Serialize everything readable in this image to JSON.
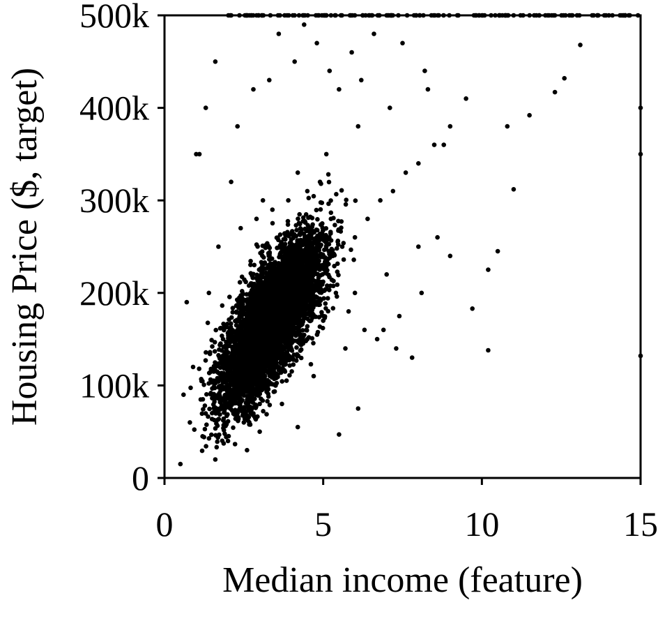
{
  "chart_data": {
    "type": "scatter",
    "title": "",
    "xlabel": "Median income (feature)",
    "ylabel": "Housing Price ($, target)",
    "xlim": [
      0,
      15
    ],
    "ylim": [
      0,
      500000
    ],
    "grid": false,
    "legend": "none",
    "x_ticks": [
      {
        "value": 0,
        "label": "0"
      },
      {
        "value": 5,
        "label": "5"
      },
      {
        "value": 10,
        "label": "10"
      },
      {
        "value": 15,
        "label": "15"
      }
    ],
    "y_ticks": [
      {
        "value": 0,
        "label": "0"
      },
      {
        "value": 100000,
        "label": "100k"
      },
      {
        "value": 200000,
        "label": "200k"
      },
      {
        "value": 300000,
        "label": "300k"
      },
      {
        "value": 400000,
        "label": "400k"
      },
      {
        "value": 500000,
        "label": "500k"
      }
    ],
    "colors": {
      "points": "#000000",
      "axes": "#000000",
      "background": "#ffffff"
    },
    "series": [
      {
        "x": [
          0.5,
          0.8,
          1.2,
          1.5,
          1.8,
          2.0,
          2.2,
          2.5,
          2.7,
          3.0,
          3.2,
          3.5,
          3.8,
          4.0,
          4.3,
          4.6,
          5.0,
          5.3,
          5.6,
          6.0,
          6.4,
          6.8,
          7.2,
          7.6,
          8.0,
          8.5,
          9.0,
          9.7,
          10.2,
          10.2,
          10.5,
          11.0,
          11.5,
          12.3,
          12.6,
          13.1,
          15.0,
          15.0,
          15.0,
          1.0,
          1.3,
          1.6,
          2.3,
          2.8,
          3.3,
          3.6,
          4.1,
          4.4,
          4.8,
          5.2,
          5.5,
          5.9,
          6.2,
          6.6,
          7.0,
          7.5,
          8.2,
          8.8,
          2.0,
          2.5,
          3.0,
          3.5,
          4.0,
          4.5,
          5.0,
          6.0,
          7.0,
          8.0,
          9.0,
          10.0,
          11.0,
          12.0,
          13.0,
          14.0,
          1.1,
          2.1,
          3.1,
          4.2,
          5.1,
          6.1,
          7.1,
          8.3,
          9.5,
          10.8,
          0.6,
          0.9,
          1.4,
          1.7,
          2.4,
          2.9,
          3.4,
          3.9,
          4.5,
          4.9,
          5.4,
          5.8,
          6.3,
          6.7,
          7.3,
          7.8,
          8.6,
          0.7,
          1.9,
          3.7,
          4.7,
          5.7,
          6.9,
          7.4,
          8.1,
          5.5,
          6.1,
          4.2,
          3.0,
          2.6,
          1.6
        ],
        "y": [
          15000,
          60000,
          45000,
          70000,
          85000,
          100000,
          115000,
          110000,
          130000,
          150000,
          140000,
          170000,
          160000,
          190000,
          200000,
          210000,
          230000,
          240000,
          250000,
          260000,
          280000,
          300000,
          310000,
          330000,
          340000,
          360000,
          380000,
          183000,
          138000,
          225000,
          245000,
          312000,
          392000,
          417000,
          432000,
          468000,
          400000,
          350000,
          132000,
          350000,
          400000,
          450000,
          380000,
          420000,
          430000,
          480000,
          450000,
          490000,
          470000,
          440000,
          420000,
          460000,
          430000,
          480000,
          500000,
          470000,
          440000,
          360000,
          40000,
          60000,
          80000,
          100000,
          130000,
          150000,
          170000,
          200000,
          220000,
          250000,
          240000,
          500000,
          500000,
          500000,
          500000,
          500000,
          350000,
          320000,
          300000,
          330000,
          350000,
          380000,
          400000,
          420000,
          410000,
          380000,
          90000,
          120000,
          200000,
          250000,
          270000,
          280000,
          290000,
          300000,
          310000,
          320000,
          200000,
          180000,
          160000,
          150000,
          140000,
          130000,
          260000,
          190000,
          60000,
          80000,
          110000,
          140000,
          160000,
          175000,
          200000,
          47000,
          75000,
          55000,
          50000,
          30000,
          20000
        ]
      }
    ]
  }
}
